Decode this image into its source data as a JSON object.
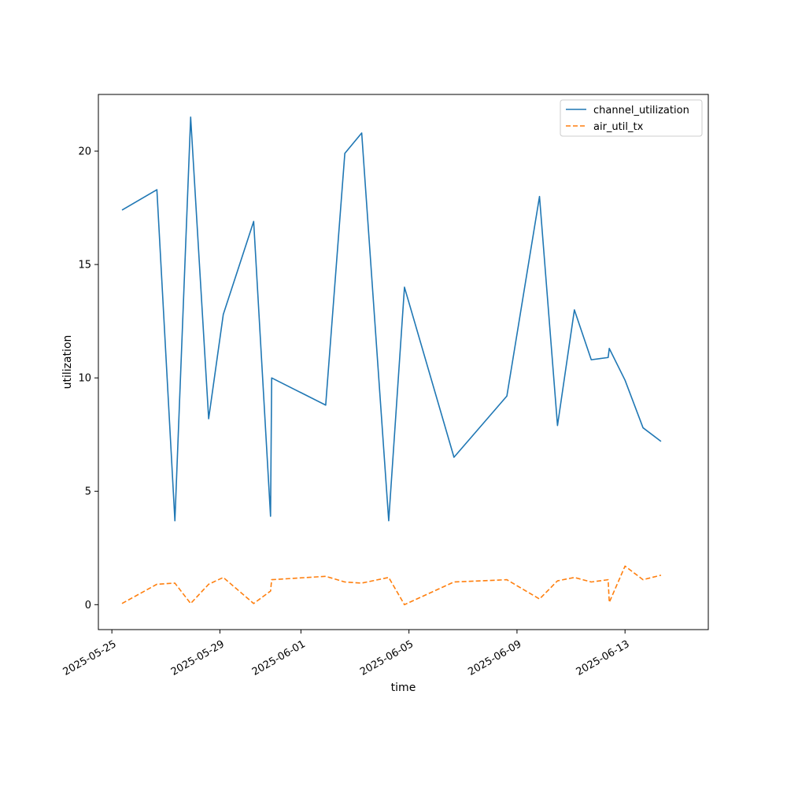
{
  "chart_data": {
    "type": "line",
    "title": "",
    "xlabel": "time",
    "ylabel": "utilization",
    "x_tick_labels": [
      "2025-05-25",
      "2025-05-29",
      "2025-06-01",
      "2025-06-05",
      "2025-06-09",
      "2025-06-13"
    ],
    "y_tick_labels": [
      "0",
      "5",
      "10",
      "15",
      "20"
    ],
    "y_ticks": [
      0,
      5,
      10,
      15,
      20
    ],
    "ylim": [
      -1.1,
      22.5
    ],
    "xlim": [
      "2025-05-24T12:00",
      "2025-06-16T02:00"
    ],
    "grid": false,
    "legend_position": "top-right",
    "series": [
      {
        "name": "channel_utilization",
        "color": "#1f77b4",
        "dash": "solid",
        "points": [
          [
            "2025-05-25T09:00",
            17.4
          ],
          [
            "2025-05-26T16:00",
            18.3
          ],
          [
            "2025-05-27T08:00",
            3.7
          ],
          [
            "2025-05-27T22:00",
            21.5
          ],
          [
            "2025-05-28T14:00",
            8.2
          ],
          [
            "2025-05-29T03:00",
            12.8
          ],
          [
            "2025-05-30T06:00",
            16.9
          ],
          [
            "2025-05-30T21:00",
            3.9
          ],
          [
            "2025-05-30T22:00",
            10.0
          ],
          [
            "2025-06-01T22:00",
            8.8
          ],
          [
            "2025-06-02T15:00",
            19.9
          ],
          [
            "2025-06-03T06:00",
            20.8
          ],
          [
            "2025-06-04T06:00",
            3.7
          ],
          [
            "2025-06-04T20:00",
            14.0
          ],
          [
            "2025-06-06T16:00",
            6.5
          ],
          [
            "2025-06-08T15:00",
            9.2
          ],
          [
            "2025-06-09T20:00",
            18.0
          ],
          [
            "2025-06-10T12:00",
            7.9
          ],
          [
            "2025-06-11T03:00",
            13.0
          ],
          [
            "2025-06-11T18:00",
            10.8
          ],
          [
            "2025-06-12T09:00",
            10.9
          ],
          [
            "2025-06-12T10:00",
            11.3
          ],
          [
            "2025-06-13T00:00",
            9.9
          ],
          [
            "2025-06-13T16:00",
            7.8
          ],
          [
            "2025-06-14T08:00",
            7.2
          ]
        ]
      },
      {
        "name": "air_util_tx",
        "color": "#ff7f0e",
        "dash": "dashed",
        "points": [
          [
            "2025-05-25T09:00",
            0.05
          ],
          [
            "2025-05-26T16:00",
            0.9
          ],
          [
            "2025-05-27T08:00",
            0.95
          ],
          [
            "2025-05-27T22:00",
            0.05
          ],
          [
            "2025-05-28T14:00",
            0.9
          ],
          [
            "2025-05-29T03:00",
            1.2
          ],
          [
            "2025-05-30T06:00",
            0.05
          ],
          [
            "2025-05-30T21:00",
            0.6
          ],
          [
            "2025-05-30T22:00",
            1.1
          ],
          [
            "2025-06-01T22:00",
            1.25
          ],
          [
            "2025-06-02T15:00",
            1.0
          ],
          [
            "2025-06-03T06:00",
            0.95
          ],
          [
            "2025-06-04T06:00",
            1.2
          ],
          [
            "2025-06-04T20:00",
            0.0
          ],
          [
            "2025-06-06T16:00",
            1.0
          ],
          [
            "2025-06-08T15:00",
            1.1
          ],
          [
            "2025-06-09T20:00",
            0.25
          ],
          [
            "2025-06-10T12:00",
            1.05
          ],
          [
            "2025-06-11T03:00",
            1.2
          ],
          [
            "2025-06-11T18:00",
            1.0
          ],
          [
            "2025-06-12T09:00",
            1.1
          ],
          [
            "2025-06-12T10:00",
            0.1
          ],
          [
            "2025-06-13T00:00",
            1.7
          ],
          [
            "2025-06-13T16:00",
            1.1
          ],
          [
            "2025-06-14T08:00",
            1.3
          ]
        ]
      }
    ]
  }
}
